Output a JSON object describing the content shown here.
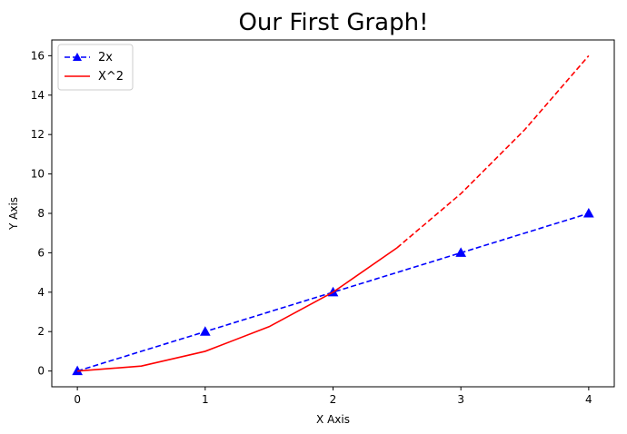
{
  "chart_data": {
    "type": "line",
    "title": "Our First Graph!",
    "xlabel": "X Axis",
    "ylabel": "Y Axis",
    "xlim": [
      -0.2,
      4.2
    ],
    "ylim": [
      -0.8,
      16.8
    ],
    "xticks": [
      0,
      1,
      2,
      3,
      4
    ],
    "yticks": [
      0,
      2,
      4,
      6,
      8,
      10,
      12,
      14,
      16
    ],
    "grid": false,
    "legend_position": "upper left",
    "series": [
      {
        "name": "2x",
        "color": "#0000ff",
        "linestyle": "dashed",
        "marker": "triangle-up",
        "x": [
          0,
          1,
          2,
          3,
          4
        ],
        "y": [
          0,
          2,
          4,
          6,
          8
        ]
      },
      {
        "name": "X^2",
        "color": "#ff0000",
        "linestyle": "solid",
        "marker": "none",
        "x": [
          0,
          0.5,
          1,
          1.5,
          2,
          2.5
        ],
        "y": [
          0,
          0.25,
          1,
          2.25,
          4,
          6.25
        ]
      },
      {
        "color": "#ff0000",
        "linestyle": "dashed",
        "marker": "none",
        "x": [
          2.5,
          3,
          3.5,
          4
        ],
        "y": [
          6.25,
          9,
          12.25,
          16
        ]
      }
    ]
  }
}
